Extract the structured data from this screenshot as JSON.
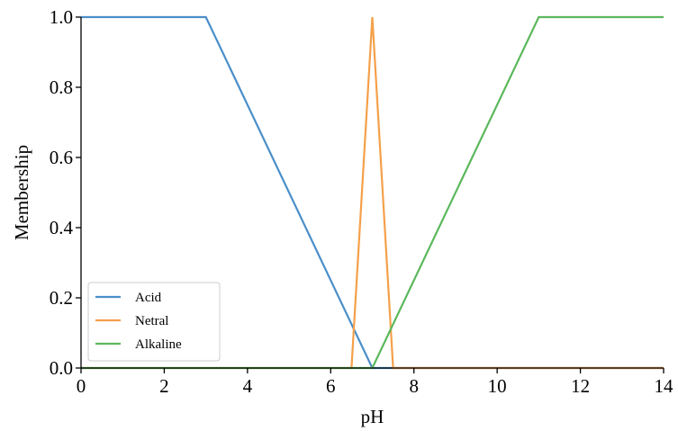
{
  "chart_data": {
    "type": "line",
    "title": "",
    "xlabel": "pH",
    "ylabel": "Membership",
    "xlim": [
      0,
      14
    ],
    "ylim": [
      0,
      1
    ],
    "xticks": [
      0,
      2,
      4,
      6,
      8,
      10,
      12,
      14
    ],
    "xtick_labels": [
      "0",
      "2",
      "4",
      "6",
      "8",
      "10",
      "12",
      "14"
    ],
    "yticks": [
      0,
      0.2,
      0.4,
      0.6,
      0.8,
      1.0
    ],
    "ytick_labels": [
      "0.0",
      "0.2",
      "0.4",
      "0.6",
      "0.8",
      "1.0"
    ],
    "grid": false,
    "legend_position": "bottom-left",
    "series": [
      {
        "name": "Acid",
        "color": "#4a8fc9",
        "x": [
          0,
          3,
          7,
          14
        ],
        "y": [
          1,
          1,
          0,
          0
        ]
      },
      {
        "name": "Netral",
        "color": "#f5a04a",
        "x": [
          0,
          6.5,
          7,
          7.5,
          14
        ],
        "y": [
          0,
          0,
          1,
          0,
          0
        ]
      },
      {
        "name": "Alkaline",
        "color": "#5cb85c",
        "x": [
          0,
          7,
          11,
          14
        ],
        "y": [
          0,
          0,
          1,
          1
        ]
      }
    ]
  }
}
